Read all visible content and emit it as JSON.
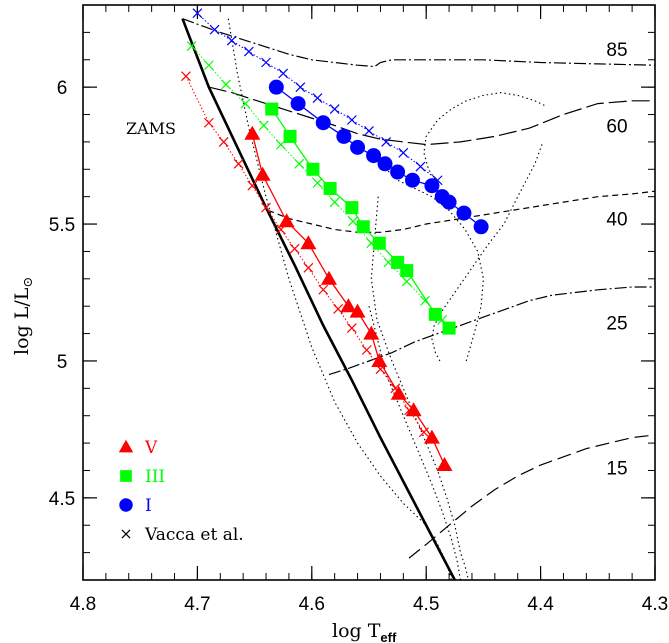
{
  "chart_data": {
    "type": "scatter",
    "title": "",
    "xlabel": "log T",
    "xlabel_sub": "eff",
    "ylabel": "log L/L",
    "ylabel_sub": "⊙",
    "xlim": [
      4.8,
      4.3
    ],
    "ylim": [
      4.2,
      6.3
    ],
    "x_ticks": [
      4.8,
      4.7,
      4.6,
      4.5,
      4.4,
      4.3
    ],
    "x_tick_labels": [
      "4.8",
      "4.7",
      "4.6",
      "4.5",
      "4.4",
      "4.3"
    ],
    "y_ticks": [
      4.5,
      5.0,
      5.5,
      6.0
    ],
    "y_tick_labels": [
      "4.5",
      "5",
      "5.5",
      "6"
    ],
    "grid": false,
    "legend_position": "bottom-left",
    "zams_label": "ZAMS",
    "zams": {
      "x": [
        4.713,
        4.69,
        4.665,
        4.64,
        4.615,
        4.59,
        4.565,
        4.54,
        4.515,
        4.49,
        4.475
      ],
      "y": [
        6.25,
        6.0,
        5.78,
        5.56,
        5.35,
        5.13,
        4.93,
        4.72,
        4.52,
        4.32,
        4.2
      ]
    },
    "isochrones": [
      {
        "x": [
          4.673,
          4.665,
          4.655,
          4.64,
          4.62,
          4.6,
          4.58,
          4.56,
          4.54,
          4.52,
          4.5,
          4.49,
          4.482,
          4.478
        ],
        "y": [
          6.25,
          6.05,
          5.85,
          5.6,
          5.3,
          5.05,
          4.85,
          4.7,
          4.58,
          4.48,
          4.4,
          4.33,
          4.26,
          4.2
        ]
      },
      {
        "x": [
          4.542,
          4.545,
          4.548,
          4.543,
          4.53,
          4.515,
          4.5,
          4.49,
          4.482,
          4.475,
          4.47,
          4.466,
          4.463
        ],
        "y": [
          5.6,
          5.45,
          5.3,
          5.15,
          5.0,
          4.85,
          4.7,
          4.6,
          4.5,
          4.4,
          4.3,
          4.25,
          4.2
        ]
      },
      {
        "x": [
          4.55,
          4.545,
          4.535,
          4.52,
          4.505,
          4.495,
          4.486,
          4.478,
          4.473,
          4.47
        ],
        "y": [
          5.2,
          5.12,
          4.95,
          4.8,
          4.65,
          4.55,
          4.45,
          4.35,
          4.27,
          4.2
        ]
      },
      {
        "x": [
          4.488,
          4.492,
          4.495,
          4.493,
          4.485,
          4.475,
          4.465,
          4.455,
          4.445,
          4.432,
          4.42,
          4.405,
          4.398
        ],
        "y": [
          5.0,
          5.03,
          5.08,
          5.13,
          5.19,
          5.25,
          5.31,
          5.37,
          5.43,
          5.5,
          5.6,
          5.72,
          5.8
        ]
      },
      {
        "x": [
          4.49,
          4.498,
          4.502,
          4.5,
          4.49,
          4.478,
          4.465,
          4.45,
          4.435,
          4.42,
          4.405,
          4.395
        ],
        "y": [
          5.65,
          5.7,
          5.76,
          5.82,
          5.88,
          5.92,
          5.95,
          5.97,
          5.98,
          5.97,
          5.95,
          5.93
        ]
      },
      {
        "x": [
          4.465,
          4.458,
          4.452,
          4.45,
          4.455,
          4.466,
          4.48,
          4.495,
          4.51,
          4.525,
          4.535,
          4.54
        ],
        "y": [
          5.0,
          5.1,
          5.2,
          5.3,
          5.4,
          5.48,
          5.55,
          5.6,
          5.63,
          5.66,
          5.7,
          5.73
        ]
      }
    ],
    "tracks": [
      {
        "label": "85",
        "x": [
          4.713,
          4.7,
          4.68,
          4.65,
          4.62,
          4.6,
          4.58,
          4.56,
          4.545,
          4.54,
          4.53,
          4.5,
          4.45,
          4.4,
          4.35,
          4.3
        ],
        "y": [
          6.25,
          6.23,
          6.2,
          6.16,
          6.12,
          6.1,
          6.09,
          6.08,
          6.075,
          6.09,
          6.1,
          6.1,
          6.1,
          6.09,
          6.085,
          6.08
        ]
      },
      {
        "label": "60",
        "x": [
          4.69,
          4.67,
          4.64,
          4.61,
          4.58,
          4.56,
          4.54,
          4.52,
          4.5,
          4.47,
          4.44,
          4.41,
          4.38,
          4.35,
          4.32,
          4.3
        ],
        "y": [
          6.0,
          5.98,
          5.94,
          5.9,
          5.86,
          5.83,
          5.81,
          5.8,
          5.79,
          5.8,
          5.82,
          5.85,
          5.9,
          5.94,
          5.95,
          5.95
        ]
      },
      {
        "label": "40",
        "x": [
          4.638,
          4.62,
          4.6,
          4.58,
          4.56,
          4.54,
          4.52,
          4.5,
          4.47,
          4.44,
          4.41,
          4.38,
          4.35,
          4.32,
          4.3
        ],
        "y": [
          5.55,
          5.52,
          5.5,
          5.48,
          5.47,
          5.47,
          5.48,
          5.5,
          5.52,
          5.54,
          5.56,
          5.58,
          5.6,
          5.61,
          5.62
        ]
      },
      {
        "label": "25",
        "x": [
          4.585,
          4.57,
          4.55,
          4.53,
          4.51,
          4.49,
          4.47,
          4.45,
          4.43,
          4.41,
          4.39,
          4.37,
          4.35,
          4.32,
          4.3
        ],
        "y": [
          4.95,
          4.97,
          5.0,
          5.03,
          5.07,
          5.1,
          5.13,
          5.16,
          5.19,
          5.22,
          5.24,
          5.25,
          5.26,
          5.27,
          5.27
        ]
      },
      {
        "label": "15",
        "x": [
          4.515,
          4.5,
          4.48,
          4.46,
          4.44,
          4.42,
          4.4,
          4.38,
          4.36,
          4.34,
          4.32,
          4.3
        ],
        "y": [
          4.28,
          4.33,
          4.4,
          4.47,
          4.53,
          4.58,
          4.62,
          4.65,
          4.68,
          4.7,
          4.72,
          4.73
        ]
      }
    ],
    "series": [
      {
        "name": "V",
        "marker": "triangle",
        "color": "#ff0000",
        "connected": true,
        "x": [
          4.652,
          4.643,
          4.622,
          4.603,
          4.585,
          4.568,
          4.56,
          4.548,
          4.541,
          4.524,
          4.511,
          4.495,
          4.484
        ],
        "y": [
          5.83,
          5.68,
          5.51,
          5.43,
          5.3,
          5.2,
          5.18,
          5.1,
          5.0,
          4.88,
          4.82,
          4.72,
          4.62
        ]
      },
      {
        "name": "III",
        "marker": "square",
        "color": "#00ff00",
        "connected": true,
        "x": [
          4.635,
          4.619,
          4.599,
          4.584,
          4.565,
          4.555,
          4.541,
          4.525,
          4.517,
          4.492,
          4.48
        ],
        "y": [
          5.92,
          5.82,
          5.7,
          5.63,
          5.56,
          5.49,
          5.43,
          5.36,
          5.33,
          5.17,
          5.12
        ]
      },
      {
        "name": "I",
        "marker": "circle",
        "color": "#0000ff",
        "connected": true,
        "x": [
          4.631,
          4.612,
          4.59,
          4.572,
          4.56,
          4.546,
          4.536,
          4.525,
          4.512,
          4.495,
          4.486,
          4.48,
          4.467,
          4.452
        ],
        "y": [
          6.0,
          5.94,
          5.87,
          5.82,
          5.78,
          5.75,
          5.72,
          5.69,
          5.66,
          5.64,
          5.6,
          5.58,
          5.54,
          5.49
        ]
      },
      {
        "name": "Vacca et al.",
        "marker": "cross",
        "color": "#000000",
        "connected": false,
        "x": [],
        "y": []
      }
    ],
    "vacca_sets": [
      {
        "color": "#ff0000",
        "x": [
          4.71,
          4.69,
          4.677,
          4.664,
          4.652,
          4.64,
          4.627,
          4.615,
          4.603,
          4.59,
          4.577,
          4.565,
          4.552,
          4.54,
          4.527,
          4.515,
          4.502
        ],
        "y": [
          6.04,
          5.87,
          5.8,
          5.72,
          5.64,
          5.56,
          5.48,
          5.41,
          5.34,
          5.26,
          5.19,
          5.12,
          5.04,
          4.97,
          4.9,
          4.82,
          4.74
        ]
      },
      {
        "color": "#00ff00",
        "x": [
          4.705,
          4.69,
          4.675,
          4.658,
          4.642,
          4.627,
          4.611,
          4.595,
          4.58,
          4.564,
          4.548,
          4.533,
          4.517,
          4.501,
          4.486
        ],
        "y": [
          6.15,
          6.08,
          6.01,
          5.94,
          5.86,
          5.79,
          5.72,
          5.65,
          5.58,
          5.51,
          5.43,
          5.36,
          5.29,
          5.22,
          5.15
        ]
      },
      {
        "color": "#0000ff",
        "x": [
          4.7,
          4.685,
          4.67,
          4.655,
          4.64,
          4.625,
          4.61,
          4.595,
          4.58,
          4.565,
          4.55,
          4.535,
          4.52,
          4.505,
          4.49
        ],
        "y": [
          6.27,
          6.21,
          6.17,
          6.13,
          6.09,
          6.05,
          6.0,
          5.96,
          5.92,
          5.88,
          5.84,
          5.8,
          5.76,
          5.71,
          5.66
        ]
      }
    ],
    "legend": [
      {
        "label": "V",
        "marker": "triangle",
        "color": "#ff0000"
      },
      {
        "label": "III",
        "marker": "square",
        "color": "#00ff00"
      },
      {
        "label": "I",
        "marker": "circle",
        "color": "#0000ff"
      },
      {
        "label": "Vacca et al.",
        "marker": "cross",
        "color": "#000000"
      }
    ]
  }
}
